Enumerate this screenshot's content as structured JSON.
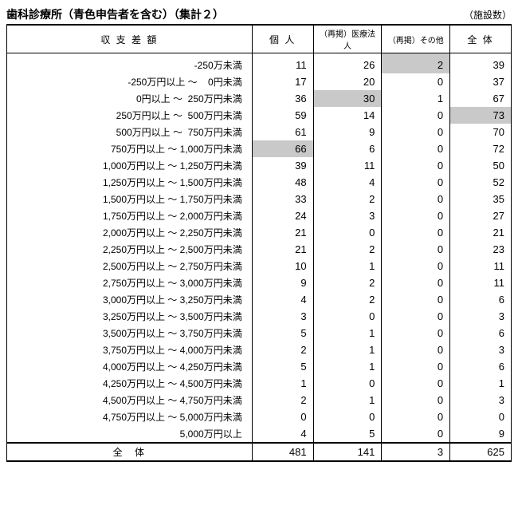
{
  "title": "歯科診療所（青色申告者を含む）（集計２）",
  "unit": "（施設数）",
  "columns": [
    "収 支 差 額",
    "個 人",
    "（再掲）医療法人",
    "（再掲）その他",
    "全 体"
  ],
  "rows": [
    {
      "label": "-250万未満",
      "v": [
        11,
        26,
        2,
        39
      ],
      "hl": [
        false,
        false,
        true,
        false
      ]
    },
    {
      "label": "-250万円以上 ～    0円未満",
      "v": [
        17,
        20,
        0,
        37
      ],
      "hl": [
        false,
        false,
        false,
        false
      ]
    },
    {
      "label": "0円以上 ～  250万円未満",
      "v": [
        36,
        30,
        1,
        67
      ],
      "hl": [
        false,
        true,
        false,
        false
      ]
    },
    {
      "label": "250万円以上 ～  500万円未満",
      "v": [
        59,
        14,
        0,
        73
      ],
      "hl": [
        false,
        false,
        false,
        true
      ]
    },
    {
      "label": "500万円以上 ～  750万円未満",
      "v": [
        61,
        9,
        0,
        70
      ],
      "hl": [
        false,
        false,
        false,
        false
      ]
    },
    {
      "label": "750万円以上 ～ 1,000万円未満",
      "v": [
        66,
        6,
        0,
        72
      ],
      "hl": [
        true,
        false,
        false,
        false
      ]
    },
    {
      "label": "1,000万円以上 ～ 1,250万円未満",
      "v": [
        39,
        11,
        0,
        50
      ],
      "hl": [
        false,
        false,
        false,
        false
      ]
    },
    {
      "label": "1,250万円以上 ～ 1,500万円未満",
      "v": [
        48,
        4,
        0,
        52
      ],
      "hl": [
        false,
        false,
        false,
        false
      ]
    },
    {
      "label": "1,500万円以上 ～ 1,750万円未満",
      "v": [
        33,
        2,
        0,
        35
      ],
      "hl": [
        false,
        false,
        false,
        false
      ]
    },
    {
      "label": "1,750万円以上 ～ 2,000万円未満",
      "v": [
        24,
        3,
        0,
        27
      ],
      "hl": [
        false,
        false,
        false,
        false
      ]
    },
    {
      "label": "2,000万円以上 ～ 2,250万円未満",
      "v": [
        21,
        0,
        0,
        21
      ],
      "hl": [
        false,
        false,
        false,
        false
      ]
    },
    {
      "label": "2,250万円以上 ～ 2,500万円未満",
      "v": [
        21,
        2,
        0,
        23
      ],
      "hl": [
        false,
        false,
        false,
        false
      ]
    },
    {
      "label": "2,500万円以上 ～ 2,750万円未満",
      "v": [
        10,
        1,
        0,
        11
      ],
      "hl": [
        false,
        false,
        false,
        false
      ]
    },
    {
      "label": "2,750万円以上 ～ 3,000万円未満",
      "v": [
        9,
        2,
        0,
        11
      ],
      "hl": [
        false,
        false,
        false,
        false
      ]
    },
    {
      "label": "3,000万円以上 ～ 3,250万円未満",
      "v": [
        4,
        2,
        0,
        6
      ],
      "hl": [
        false,
        false,
        false,
        false
      ]
    },
    {
      "label": "3,250万円以上 ～ 3,500万円未満",
      "v": [
        3,
        0,
        0,
        3
      ],
      "hl": [
        false,
        false,
        false,
        false
      ]
    },
    {
      "label": "3,500万円以上 ～ 3,750万円未満",
      "v": [
        5,
        1,
        0,
        6
      ],
      "hl": [
        false,
        false,
        false,
        false
      ]
    },
    {
      "label": "3,750万円以上 ～ 4,000万円未満",
      "v": [
        2,
        1,
        0,
        3
      ],
      "hl": [
        false,
        false,
        false,
        false
      ]
    },
    {
      "label": "4,000万円以上 ～ 4,250万円未満",
      "v": [
        5,
        1,
        0,
        6
      ],
      "hl": [
        false,
        false,
        false,
        false
      ]
    },
    {
      "label": "4,250万円以上 ～ 4,500万円未満",
      "v": [
        1,
        0,
        0,
        1
      ],
      "hl": [
        false,
        false,
        false,
        false
      ]
    },
    {
      "label": "4,500万円以上 ～ 4,750万円未満",
      "v": [
        2,
        1,
        0,
        3
      ],
      "hl": [
        false,
        false,
        false,
        false
      ]
    },
    {
      "label": "4,750万円以上 ～ 5,000万円未満",
      "v": [
        0,
        0,
        0,
        0
      ],
      "hl": [
        false,
        false,
        false,
        false
      ]
    },
    {
      "label": "5,000万円以上",
      "v": [
        4,
        5,
        0,
        9
      ],
      "hl": [
        false,
        false,
        false,
        false
      ]
    }
  ],
  "total": {
    "label": "全 体",
    "v": [
      481,
      141,
      3,
      625
    ]
  }
}
